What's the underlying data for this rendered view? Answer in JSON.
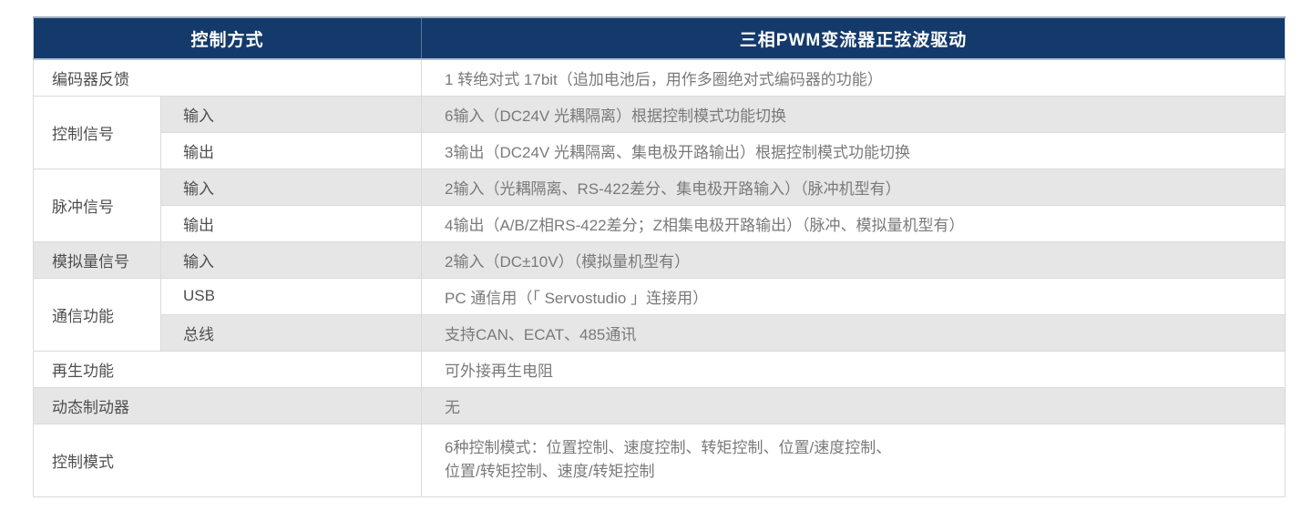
{
  "colors": {
    "header_bg": "#143a6b",
    "header_text": "#ffffff",
    "stripe_bg": "#e6e6e6",
    "row_bg": "#ffffff",
    "border": "#dadada",
    "label_text": "#4f4f4f",
    "value_text": "#7a7a7a"
  },
  "header": {
    "col_left": "控制方式",
    "col_right": "三相PWM变流器正弦波驱动"
  },
  "rows": [
    {
      "label": "编码器反馈",
      "value": "1 转绝对式 17bit（追加电池后，用作多圈绝对式编码器的功能）"
    },
    {
      "label": "控制信号",
      "sub": "输入",
      "value": "6输入（DC24V 光耦隔离）根据控制模式功能切换"
    },
    {
      "sub": "输出",
      "value": "3输出（DC24V 光耦隔离、集电极开路输出）根据控制模式功能切换"
    },
    {
      "label": "脉冲信号",
      "sub": "输入",
      "value": "2输入（光耦隔离、RS-422差分、集电极开路输入）（脉冲机型有）"
    },
    {
      "sub": "输出",
      "value": "4输出（A/B/Z相RS-422差分；Z相集电极开路输出）（脉冲、模拟量机型有）"
    },
    {
      "label": "模拟量信号",
      "sub": "输入",
      "value": "2输入（DC±10V）（模拟量机型有）"
    },
    {
      "label": "通信功能",
      "sub": "USB",
      "value": "PC 通信用（「 Servostudio 」连接用）"
    },
    {
      "sub": "总线",
      "value": "支持CAN、ECAT、485通讯"
    },
    {
      "label": "再生功能",
      "value": "可外接再生电阻"
    },
    {
      "label": "动态制动器",
      "value": "无"
    },
    {
      "label": "控制模式",
      "value_lines": [
        "6种控制模式：位置控制、速度控制、转矩控制、位置/速度控制、",
        "位置/转矩控制、速度/转矩控制"
      ]
    }
  ]
}
